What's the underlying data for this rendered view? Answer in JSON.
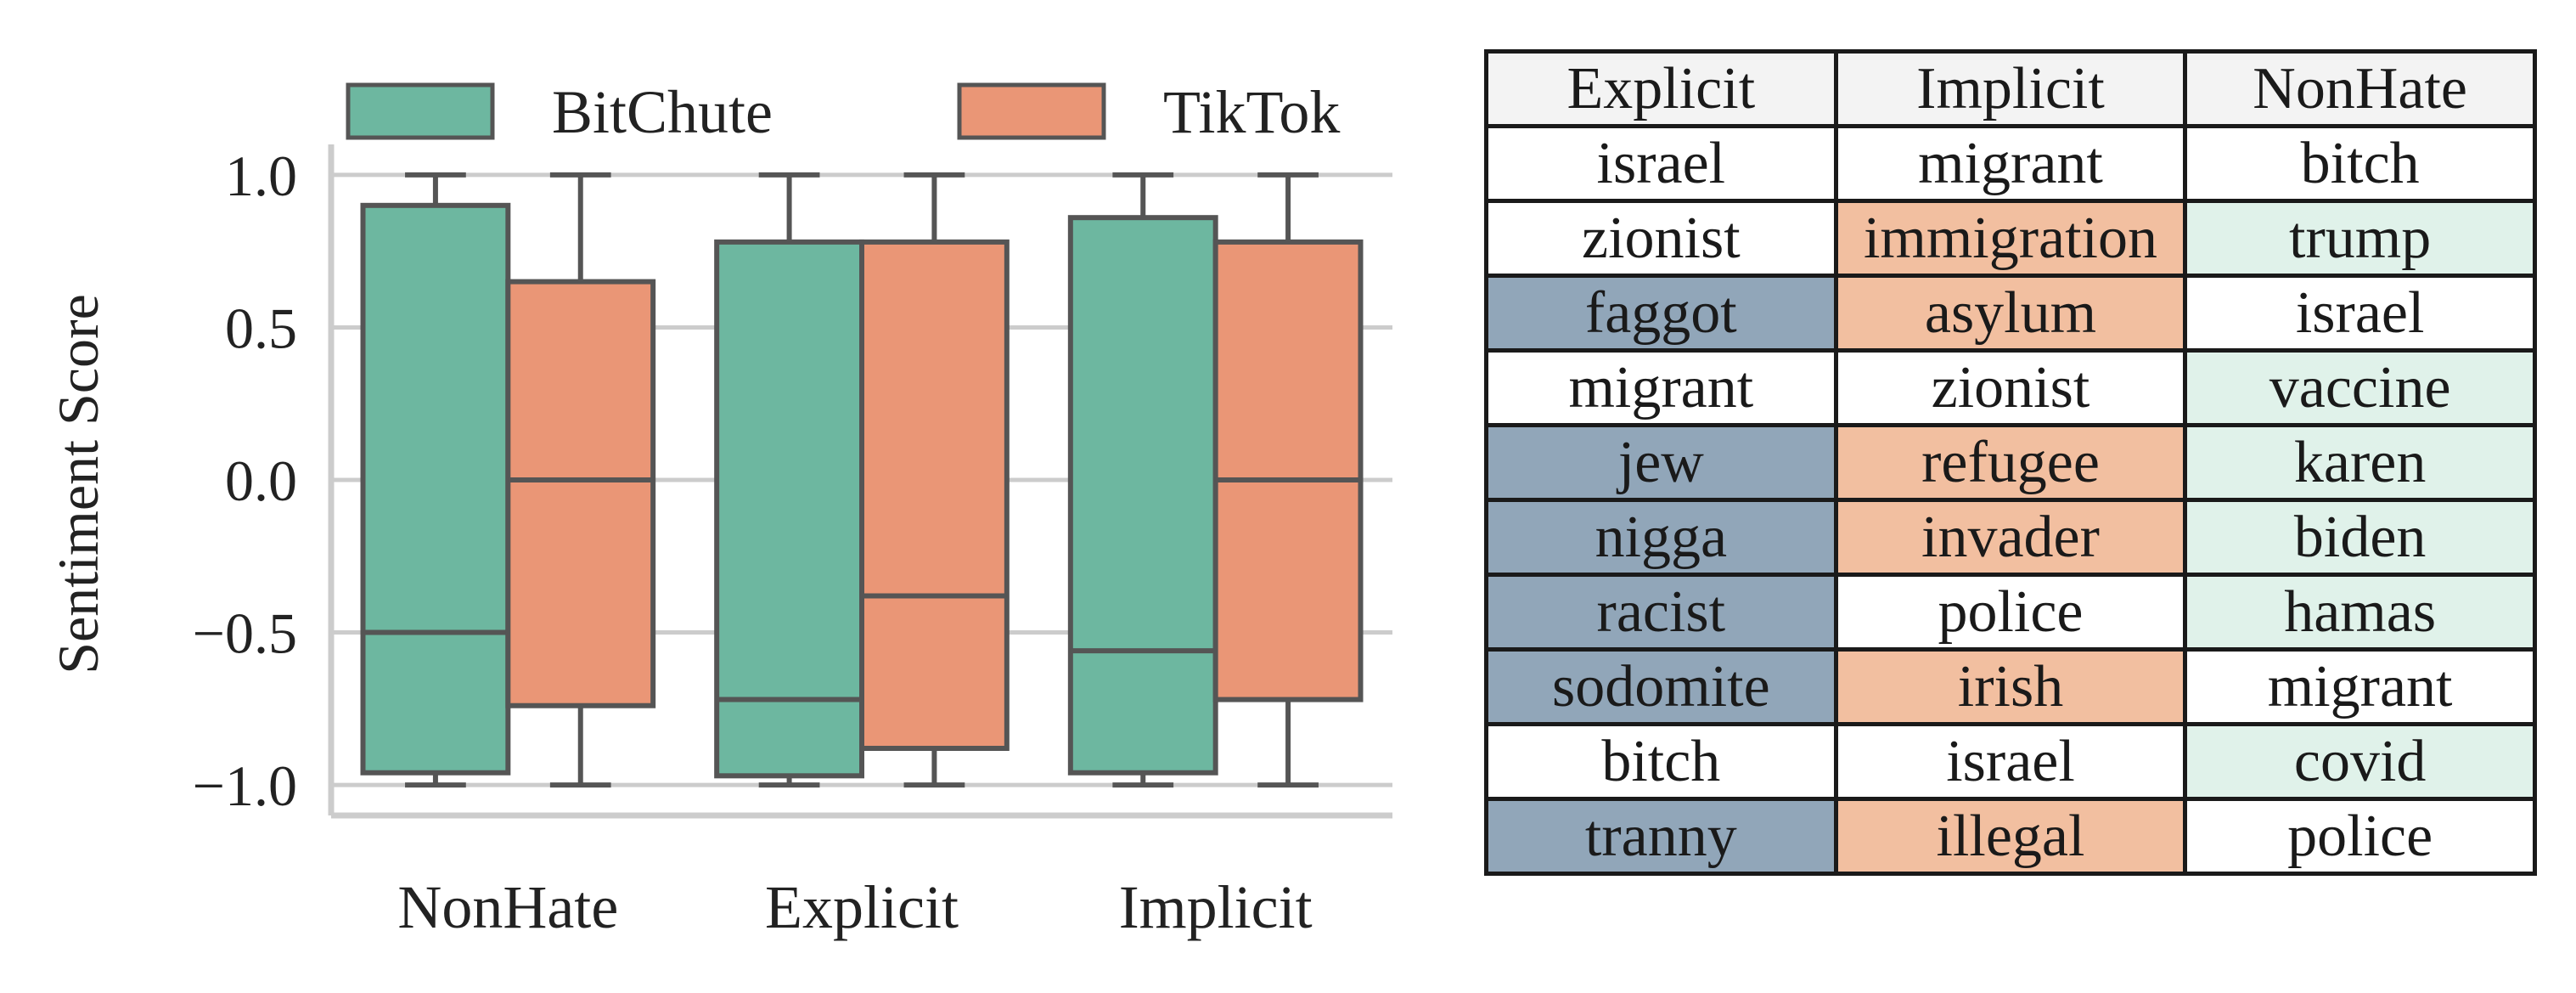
{
  "chart_data": [
    {
      "type": "box",
      "ylabel": "Sentiment Score",
      "xlabel": "",
      "ylim": [
        -1.1,
        1.1
      ],
      "yticks": [
        1.0,
        0.5,
        0.0,
        -0.5,
        -1.0
      ],
      "ytick_labels": [
        "1.0",
        "0.5",
        "0.0",
        "−0.5",
        "−1.0"
      ],
      "categories": [
        "NonHate",
        "Explicit",
        "Implicit"
      ],
      "grid": "horizontal",
      "legend_position": "top",
      "series": [
        {
          "name": "BitChute",
          "color": "#6db7a0",
          "boxes": [
            {
              "whisker_low": -1.0,
              "q1": -0.96,
              "median": -0.5,
              "q3": 0.9,
              "whisker_high": 1.0
            },
            {
              "whisker_low": -1.0,
              "q1": -0.97,
              "median": -0.72,
              "q3": 0.78,
              "whisker_high": 1.0
            },
            {
              "whisker_low": -1.0,
              "q1": -0.96,
              "median": -0.56,
              "q3": 0.86,
              "whisker_high": 1.0
            }
          ]
        },
        {
          "name": "TikTok",
          "color": "#ea9676",
          "boxes": [
            {
              "whisker_low": -1.0,
              "q1": -0.74,
              "median": 0.0,
              "q3": 0.65,
              "whisker_high": 1.0
            },
            {
              "whisker_low": -1.0,
              "q1": -0.88,
              "median": -0.38,
              "q3": 0.78,
              "whisker_high": 1.0
            },
            {
              "whisker_low": -1.0,
              "q1": -0.72,
              "median": 0.0,
              "q3": 0.78,
              "whisker_high": 1.0
            }
          ]
        }
      ]
    },
    {
      "type": "table",
      "columns": [
        "Explicit",
        "Implicit",
        "NonHate"
      ],
      "highlight_colors": {
        "Explicit": "#91a6b9",
        "Implicit": "#f2bfa0",
        "NonHate": "#e0f2ea"
      },
      "rows": [
        [
          {
            "word": "israel",
            "hl": ""
          },
          {
            "word": "migrant",
            "hl": ""
          },
          {
            "word": "bitch",
            "hl": ""
          }
        ],
        [
          {
            "word": "zionist",
            "hl": ""
          },
          {
            "word": "immigration",
            "hl": "Implicit"
          },
          {
            "word": "trump",
            "hl": "NonHate"
          }
        ],
        [
          {
            "word": "faggot",
            "hl": "Explicit"
          },
          {
            "word": "asylum",
            "hl": "Implicit"
          },
          {
            "word": "israel",
            "hl": ""
          }
        ],
        [
          {
            "word": "migrant",
            "hl": ""
          },
          {
            "word": "zionist",
            "hl": ""
          },
          {
            "word": "vaccine",
            "hl": "NonHate"
          }
        ],
        [
          {
            "word": "jew",
            "hl": "Explicit"
          },
          {
            "word": "refugee",
            "hl": "Implicit"
          },
          {
            "word": "karen",
            "hl": "NonHate"
          }
        ],
        [
          {
            "word": "nigga",
            "hl": "Explicit"
          },
          {
            "word": "invader",
            "hl": "Implicit"
          },
          {
            "word": "biden",
            "hl": "NonHate"
          }
        ],
        [
          {
            "word": "racist",
            "hl": "Explicit"
          },
          {
            "word": "police",
            "hl": ""
          },
          {
            "word": "hamas",
            "hl": "NonHate"
          }
        ],
        [
          {
            "word": "sodomite",
            "hl": "Explicit"
          },
          {
            "word": "irish",
            "hl": "Implicit"
          },
          {
            "word": "migrant",
            "hl": ""
          }
        ],
        [
          {
            "word": "bitch",
            "hl": ""
          },
          {
            "word": "israel",
            "hl": ""
          },
          {
            "word": "covid",
            "hl": "NonHate"
          }
        ],
        [
          {
            "word": "tranny",
            "hl": "Explicit"
          },
          {
            "word": "illegal",
            "hl": "Implicit"
          },
          {
            "word": "police",
            "hl": ""
          }
        ]
      ]
    }
  ]
}
